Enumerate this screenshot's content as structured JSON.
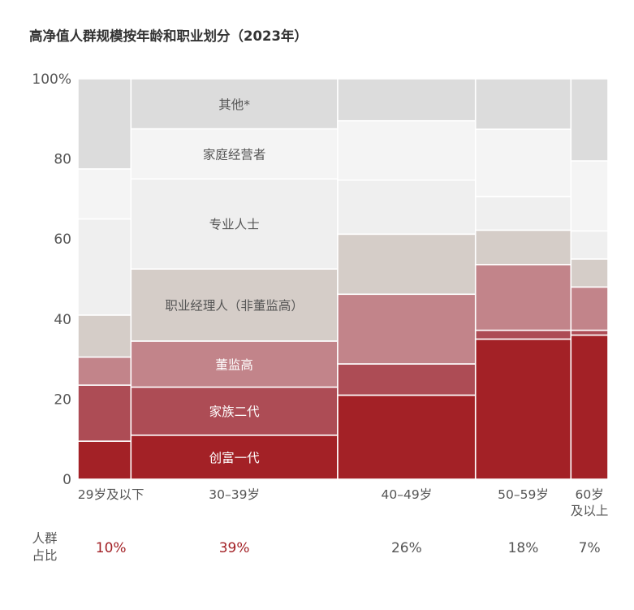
{
  "colors": {
    "其他*": "#dcdcdc",
    "家庭经营者": "#f4f4f4",
    "专业人士": "#efefef",
    "职业经理人（非董监高）": "#d5cdc8",
    "董监高": "#c2848a",
    "家族二代": "#ad4c55",
    "创富一代": "#a32126"
  },
  "chart_data": {
    "type": "bar",
    "subtype": "marimekko",
    "title": "高净值人群规模按年龄和职业划分（2023年）",
    "xlabel": "",
    "ylabel": "",
    "ylim": [
      0,
      100
    ],
    "yticks": [
      "0",
      "20",
      "40",
      "60",
      "80",
      "100%"
    ],
    "categories": [
      "29岁及以下",
      "30-39岁",
      "40-49岁",
      "50-59岁",
      "60岁及以上"
    ],
    "category_label_lines": [
      [
        "29岁及以下"
      ],
      [
        "30–39岁"
      ],
      [
        "40–49岁"
      ],
      [
        "50–59岁"
      ],
      [
        "60岁",
        "及以上"
      ]
    ],
    "share_label_lines": [
      "人群",
      "占比"
    ],
    "shares": [
      10,
      39,
      26,
      18,
      7
    ],
    "share_labels": [
      "10%",
      "39%",
      "26%",
      "18%",
      "7%"
    ],
    "share_highlight": [
      true,
      true,
      false,
      false,
      false
    ],
    "series": [
      {
        "name": "创富一代",
        "values": [
          9.5,
          11,
          21,
          35,
          36
        ]
      },
      {
        "name": "家族二代",
        "values": [
          14,
          12,
          7.8,
          2.2,
          1.2
        ]
      },
      {
        "name": "董监高",
        "values": [
          7,
          11.5,
          17.4,
          16.4,
          10.8
        ]
      },
      {
        "name": "职业经理人（非董监高）",
        "values": [
          10.5,
          18,
          15,
          8.6,
          7
        ]
      },
      {
        "name": "专业人士",
        "values": [
          24,
          22.5,
          13.5,
          8.4,
          7
        ]
      },
      {
        "name": "家庭经营者",
        "values": [
          12.5,
          12.5,
          14.8,
          16.8,
          17.5
        ]
      },
      {
        "name": "其他*",
        "values": [
          22.5,
          12.5,
          10.5,
          12.6,
          20.5
        ]
      }
    ],
    "segment_label_column": 1,
    "segment_labels": [
      "创富一代",
      "家族二代",
      "董监高",
      "职业经理人（非董监高）",
      "专业人士",
      "家庭经营者",
      "其他*"
    ],
    "grid": false,
    "legend": "none"
  }
}
